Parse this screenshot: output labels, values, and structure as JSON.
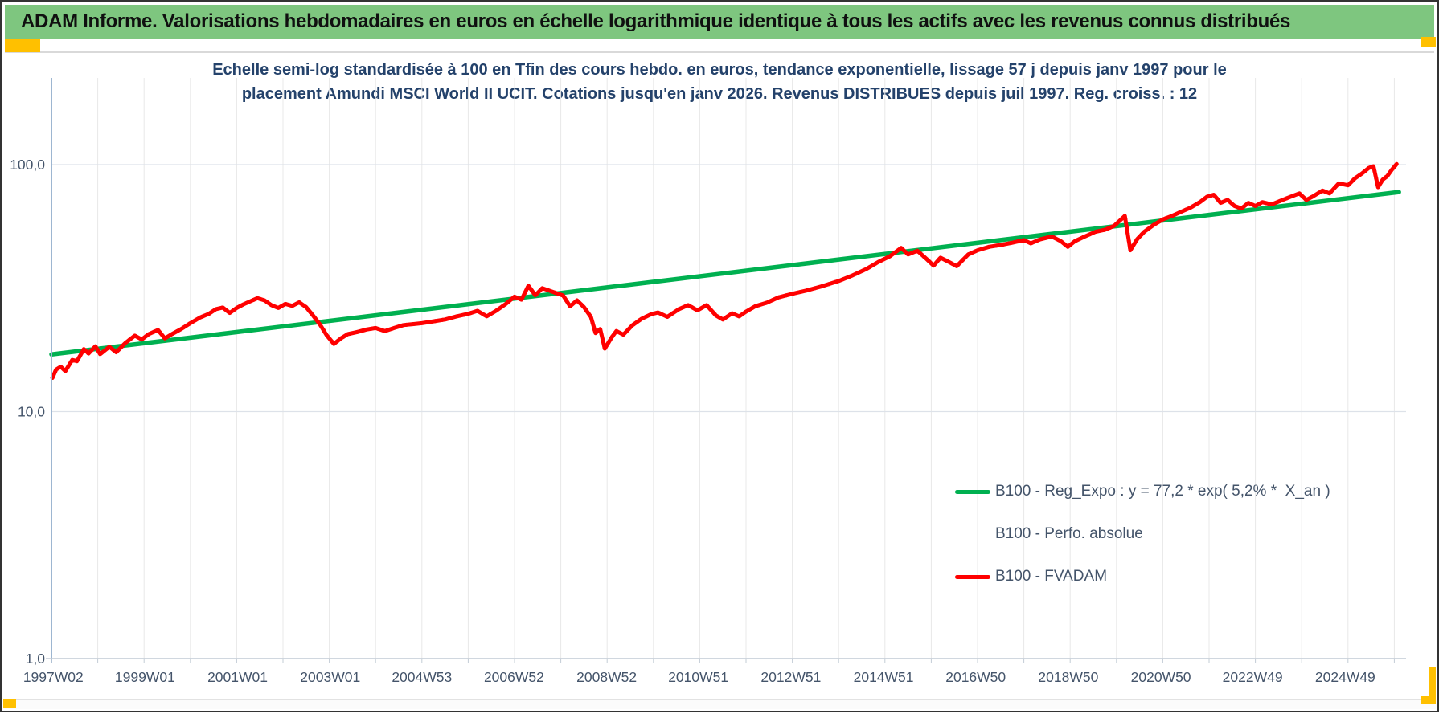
{
  "header": {
    "title": "ADAM Informe. Valorisations hebdomadaires en euros en échelle logarithmique identique à tous les actifs avec les revenus connus distribués"
  },
  "colors": {
    "header_bg": "#7ec67f",
    "accent_gold": "#ffc000",
    "title_text": "#24426b",
    "axis_text": "#44546a",
    "grid_vertical": "#e8e8e8",
    "grid_horizontal": "#dde2e9",
    "axis_line_left": "#9db6d1",
    "axis_line_bottom": "#c3ccd6",
    "series_red": "#ff0000",
    "series_green": "#00b050"
  },
  "chart": {
    "title_line1": "Echelle semi-log standardisée à 100 en Tfin des cours hebdo. en euros, tendance exponentielle, lissage 57 j depuis janv 1997 pour le",
    "title_line2": "placement Amundi MSCI World II UCIT. Cotations jusqu'en janv 2026. Revenus DISTRIBUES depuis juil 1997. Reg. croiss. : 12",
    "legend": [
      {
        "label": "B100 - Reg_Expo : y = 77,2 * exp( 5,2% *  X_an )",
        "color": "#00b050",
        "style": "solid"
      },
      {
        "label": "B100 - Perfo. absolue",
        "color": "#ff0000",
        "style": "dotted"
      },
      {
        "label": "B100 - FVADAM",
        "color": "#ff0000",
        "style": "solid"
      }
    ]
  },
  "chart_data": {
    "type": "line",
    "title": "Echelle semi-log standardisée à 100 en Tfin des cours hebdo. en euros, tendance exponentielle, lissage 57 j depuis janv 1997 pour le placement Amundi MSCI World II UCIT. Cotations jusqu'en janv 2026. Revenus DISTRIBUES depuis juil 1997. Reg. croiss. : 12",
    "y_axis": {
      "scale": "log",
      "range": [
        1,
        224
      ],
      "ticks": [
        {
          "label": "100,0",
          "value": 100
        },
        {
          "label": "10,0",
          "value": 10
        },
        {
          "label": "1,0",
          "value": 1
        }
      ]
    },
    "x_axis": {
      "range_years": [
        1996.95,
        2026.3
      ],
      "grid_every_years": 1,
      "ticks": [
        {
          "label": "1997W02",
          "year": 1997.04
        },
        {
          "label": "1999W01",
          "year": 1999.02
        },
        {
          "label": "2001W01",
          "year": 2001.02
        },
        {
          "label": "2003W01",
          "year": 2003.02
        },
        {
          "label": "2004W53",
          "year": 2005.0
        },
        {
          "label": "2006W52",
          "year": 2006.99
        },
        {
          "label": "2008W52",
          "year": 2008.99
        },
        {
          "label": "2010W51",
          "year": 2010.97
        },
        {
          "label": "2012W51",
          "year": 2012.97
        },
        {
          "label": "2014W51",
          "year": 2014.97
        },
        {
          "label": "2016W50",
          "year": 2016.96
        },
        {
          "label": "2018W50",
          "year": 2018.96
        },
        {
          "label": "2020W50",
          "year": 2020.96
        },
        {
          "label": "2022W49",
          "year": 2022.94
        },
        {
          "label": "2024W49",
          "year": 2024.94
        }
      ]
    },
    "legend_position": "inside-lower-right",
    "grid": true,
    "series": [
      {
        "name": "B100 - Reg_Expo : y = 77,2 * exp( 5,2% *  X_an )",
        "type": "regression_exponential",
        "color": "#00b050",
        "style": "solid",
        "equation": "y = 77,2 * exp( 5,2% * X_an )",
        "params": {
          "a": 77.2,
          "rate": 0.052,
          "t_ref_year": 2026.04
        },
        "x_span_years": [
          1997.0,
          2026.1
        ]
      },
      {
        "name": "B100 - Perfo. absolue",
        "type": "line",
        "color": "#ff0000",
        "style": "dotted",
        "points_same_as_series_index": 2
      },
      {
        "name": "B100 - FVADAM",
        "type": "line",
        "color": "#ff0000",
        "style": "solid",
        "points": [
          [
            1997.02,
            13.7
          ],
          [
            1997.1,
            14.8
          ],
          [
            1997.2,
            15.2
          ],
          [
            1997.3,
            14.6
          ],
          [
            1997.45,
            16.2
          ],
          [
            1997.55,
            16.0
          ],
          [
            1997.7,
            17.9
          ],
          [
            1997.8,
            17.2
          ],
          [
            1997.95,
            18.4
          ],
          [
            1998.05,
            17.1
          ],
          [
            1998.25,
            18.3
          ],
          [
            1998.4,
            17.4
          ],
          [
            1998.6,
            19.0
          ],
          [
            1998.8,
            20.3
          ],
          [
            1998.95,
            19.6
          ],
          [
            1999.1,
            20.6
          ],
          [
            1999.3,
            21.4
          ],
          [
            1999.45,
            19.8
          ],
          [
            1999.6,
            20.6
          ],
          [
            1999.8,
            21.6
          ],
          [
            2000.0,
            22.8
          ],
          [
            2000.2,
            24.0
          ],
          [
            2000.4,
            24.9
          ],
          [
            2000.55,
            26.0
          ],
          [
            2000.7,
            26.4
          ],
          [
            2000.85,
            25.1
          ],
          [
            2001.0,
            26.3
          ],
          [
            2001.15,
            27.2
          ],
          [
            2001.3,
            28.0
          ],
          [
            2001.45,
            28.8
          ],
          [
            2001.6,
            28.2
          ],
          [
            2001.75,
            27.0
          ],
          [
            2001.9,
            26.3
          ],
          [
            2002.05,
            27.3
          ],
          [
            2002.2,
            26.8
          ],
          [
            2002.35,
            27.7
          ],
          [
            2002.5,
            26.5
          ],
          [
            2002.65,
            24.5
          ],
          [
            2002.8,
            22.5
          ],
          [
            2002.95,
            20.3
          ],
          [
            2003.1,
            18.8
          ],
          [
            2003.25,
            19.8
          ],
          [
            2003.4,
            20.6
          ],
          [
            2003.6,
            21.0
          ],
          [
            2003.8,
            21.5
          ],
          [
            2004.0,
            21.8
          ],
          [
            2004.2,
            21.2
          ],
          [
            2004.4,
            21.8
          ],
          [
            2004.6,
            22.4
          ],
          [
            2004.8,
            22.6
          ],
          [
            2005.0,
            22.8
          ],
          [
            2005.25,
            23.2
          ],
          [
            2005.5,
            23.6
          ],
          [
            2005.75,
            24.3
          ],
          [
            2006.0,
            24.9
          ],
          [
            2006.2,
            25.6
          ],
          [
            2006.4,
            24.3
          ],
          [
            2006.6,
            25.6
          ],
          [
            2006.8,
            27.2
          ],
          [
            2007.0,
            29.2
          ],
          [
            2007.15,
            28.4
          ],
          [
            2007.3,
            32.3
          ],
          [
            2007.45,
            29.6
          ],
          [
            2007.6,
            31.6
          ],
          [
            2007.75,
            30.9
          ],
          [
            2007.9,
            30.2
          ],
          [
            2008.05,
            29.5
          ],
          [
            2008.2,
            26.7
          ],
          [
            2008.35,
            28.2
          ],
          [
            2008.5,
            26.5
          ],
          [
            2008.65,
            24.2
          ],
          [
            2008.75,
            20.8
          ],
          [
            2008.85,
            21.6
          ],
          [
            2008.95,
            18.0
          ],
          [
            2009.1,
            20.0
          ],
          [
            2009.2,
            21.2
          ],
          [
            2009.35,
            20.5
          ],
          [
            2009.55,
            22.4
          ],
          [
            2009.75,
            23.8
          ],
          [
            2009.95,
            24.8
          ],
          [
            2010.1,
            25.2
          ],
          [
            2010.3,
            24.2
          ],
          [
            2010.55,
            26.0
          ],
          [
            2010.75,
            27.0
          ],
          [
            2010.95,
            25.7
          ],
          [
            2011.15,
            27.0
          ],
          [
            2011.35,
            24.5
          ],
          [
            2011.5,
            23.6
          ],
          [
            2011.7,
            25.0
          ],
          [
            2011.85,
            24.3
          ],
          [
            2012.0,
            25.4
          ],
          [
            2012.2,
            26.7
          ],
          [
            2012.45,
            27.6
          ],
          [
            2012.7,
            29.0
          ],
          [
            2013.0,
            30.0
          ],
          [
            2013.3,
            30.9
          ],
          [
            2013.65,
            32.2
          ],
          [
            2014.0,
            33.8
          ],
          [
            2014.3,
            35.6
          ],
          [
            2014.6,
            37.8
          ],
          [
            2014.85,
            40.3
          ],
          [
            2015.1,
            42.5
          ],
          [
            2015.35,
            46.0
          ],
          [
            2015.5,
            43.3
          ],
          [
            2015.7,
            44.8
          ],
          [
            2015.9,
            41.5
          ],
          [
            2016.05,
            39.0
          ],
          [
            2016.2,
            42.0
          ],
          [
            2016.4,
            40.2
          ],
          [
            2016.55,
            38.8
          ],
          [
            2016.8,
            43.3
          ],
          [
            2017.0,
            45.0
          ],
          [
            2017.25,
            46.5
          ],
          [
            2017.5,
            47.3
          ],
          [
            2017.75,
            48.3
          ],
          [
            2018.0,
            49.5
          ],
          [
            2018.15,
            48.0
          ],
          [
            2018.35,
            49.8
          ],
          [
            2018.6,
            51.2
          ],
          [
            2018.8,
            49.0
          ],
          [
            2018.95,
            46.5
          ],
          [
            2019.1,
            49.0
          ],
          [
            2019.3,
            51.0
          ],
          [
            2019.55,
            53.5
          ],
          [
            2019.75,
            54.5
          ],
          [
            2019.95,
            56.5
          ],
          [
            2020.1,
            60.0
          ],
          [
            2020.18,
            62.0
          ],
          [
            2020.3,
            45.0
          ],
          [
            2020.45,
            50.0
          ],
          [
            2020.6,
            53.5
          ],
          [
            2020.8,
            57.0
          ],
          [
            2021.0,
            60.0
          ],
          [
            2021.2,
            62.0
          ],
          [
            2021.4,
            64.5
          ],
          [
            2021.6,
            67.0
          ],
          [
            2021.8,
            70.5
          ],
          [
            2021.95,
            74.0
          ],
          [
            2022.1,
            75.5
          ],
          [
            2022.25,
            70.0
          ],
          [
            2022.4,
            72.0
          ],
          [
            2022.55,
            68.0
          ],
          [
            2022.7,
            66.5
          ],
          [
            2022.85,
            70.0
          ],
          [
            2023.0,
            68.0
          ],
          [
            2023.15,
            70.5
          ],
          [
            2023.35,
            69.0
          ],
          [
            2023.55,
            71.5
          ],
          [
            2023.75,
            74.0
          ],
          [
            2023.95,
            76.5
          ],
          [
            2024.1,
            72.0
          ],
          [
            2024.25,
            74.5
          ],
          [
            2024.45,
            78.5
          ],
          [
            2024.6,
            76.5
          ],
          [
            2024.8,
            84.0
          ],
          [
            2025.0,
            82.5
          ],
          [
            2025.15,
            88.0
          ],
          [
            2025.3,
            92.0
          ],
          [
            2025.45,
            97.0
          ],
          [
            2025.55,
            98.5
          ],
          [
            2025.65,
            81.0
          ],
          [
            2025.75,
            87.0
          ],
          [
            2025.85,
            90.0
          ],
          [
            2025.95,
            95.5
          ],
          [
            2026.05,
            100.5
          ]
        ]
      }
    ]
  }
}
